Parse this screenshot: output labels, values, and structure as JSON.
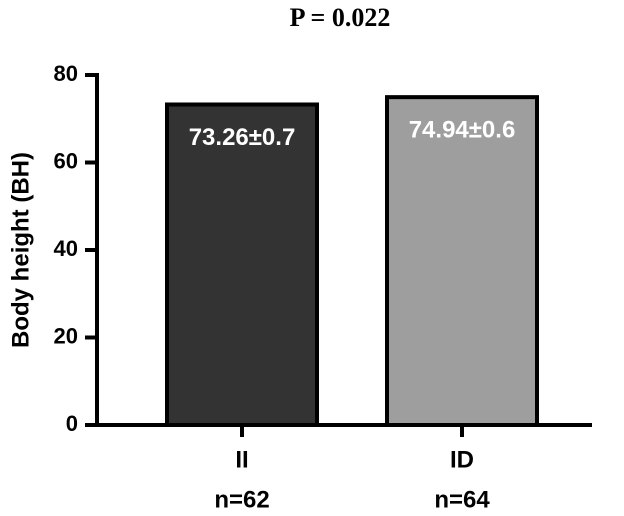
{
  "chart_data": {
    "type": "bar",
    "title": "P = 0.022",
    "categories": [
      "II",
      "ID"
    ],
    "sample_labels": [
      "n=62",
      "n=64"
    ],
    "values": [
      73.26,
      74.94
    ],
    "value_labels": [
      "73.26±0.7",
      "74.94±0.6"
    ],
    "colors": [
      "#333333",
      "#9e9e9e"
    ],
    "y_label": "Body height (BH)",
    "ylim": [
      0,
      80
    ],
    "yticks": [
      0,
      20,
      40,
      60,
      80
    ],
    "grid": false
  }
}
